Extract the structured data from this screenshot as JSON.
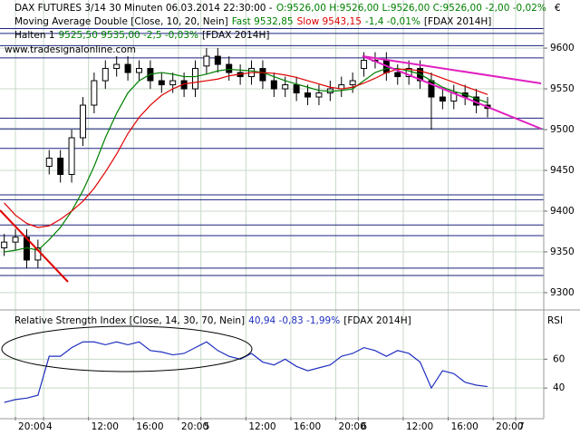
{
  "chart_data": {
    "type": "candlestick",
    "title": "DAX FUTURES 3/14 30 Minuten  06.03.2014 22:30:00 -",
    "quote": "O:9526,00 H:9526,00 L:9526,00 C:9526,00 -2,00 -0,02%",
    "currency": "€",
    "watermark": "www.tradesignalonline.com",
    "ma_label": "Moving Average Double [Close, 10, 20, Nein]",
    "ma_fast_label": "Fast 9532,85",
    "ma_slow_label": "Slow 9543,15",
    "ma_change": "-1,4 -0,01%",
    "ma_symbol": "[FDAX 2014H]",
    "hold_label": "Halten 1",
    "hold_values": "9525,50 9535,00 -2,5 -0,03%",
    "hold_symbol": "[FDAX 2014H]",
    "x": [
      0,
      2,
      4,
      6,
      8,
      10,
      12,
      14,
      16,
      18,
      20,
      22,
      24,
      26,
      28,
      30,
      32,
      34,
      36,
      38,
      40,
      42,
      44,
      46,
      48,
      50,
      52,
      54,
      56,
      58,
      60,
      62,
      64,
      66,
      68,
      70,
      72,
      74,
      76,
      78,
      80,
      82,
      84,
      86
    ],
    "open": [
      9355,
      9362,
      9368,
      9340,
      9455,
      9465,
      9445,
      9490,
      9530,
      9560,
      9575,
      9580,
      9570,
      9575,
      9560,
      9555,
      9560,
      9550,
      9578,
      9590,
      9580,
      9570,
      9565,
      9575,
      9560,
      9550,
      9555,
      9545,
      9540,
      9545,
      9550,
      9555,
      9575,
      9585,
      9585,
      9570,
      9565,
      9575,
      9560,
      9540,
      9535,
      9545,
      9540,
      9530
    ],
    "high": [
      9372,
      9378,
      9378,
      9365,
      9475,
      9475,
      9500,
      9540,
      9570,
      9585,
      9590,
      9590,
      9585,
      9585,
      9570,
      9570,
      9570,
      9585,
      9600,
      9600,
      9590,
      9580,
      9585,
      9585,
      9570,
      9565,
      9565,
      9555,
      9555,
      9560,
      9565,
      9570,
      9595,
      9595,
      9595,
      9580,
      9585,
      9585,
      9570,
      9550,
      9555,
      9555,
      9550,
      9540
    ],
    "low": [
      9345,
      9352,
      9330,
      9330,
      9445,
      9435,
      9435,
      9480,
      9520,
      9550,
      9565,
      9560,
      9560,
      9550,
      9545,
      9545,
      9540,
      9540,
      9568,
      9570,
      9560,
      9555,
      9555,
      9550,
      9540,
      9540,
      9535,
      9530,
      9530,
      9535,
      9540,
      9545,
      9565,
      9575,
      9560,
      9555,
      9555,
      9550,
      9500,
      9525,
      9525,
      9530,
      9520,
      9515
    ],
    "close": [
      9362,
      9368,
      9340,
      9355,
      9465,
      9445,
      9490,
      9530,
      9560,
      9575,
      9580,
      9570,
      9575,
      9560,
      9555,
      9560,
      9550,
      9575,
      9590,
      9580,
      9570,
      9565,
      9575,
      9560,
      9550,
      9555,
      9545,
      9540,
      9545,
      9550,
      9555,
      9560,
      9585,
      9585,
      9570,
      9565,
      9575,
      9560,
      9540,
      9535,
      9545,
      9540,
      9530,
      9526
    ],
    "series": [
      {
        "color": "#008000",
        "values": [
          9350,
          9352,
          9355,
          9352,
          9365,
          9380,
          9400,
          9425,
          9455,
          9490,
          9520,
          9545,
          9560,
          9568,
          9570,
          9568,
          9565,
          9565,
          9568,
          9572,
          9574,
          9573,
          9572,
          9570,
          9565,
          9560,
          9556,
          9552,
          9548,
          9547,
          9548,
          9550,
          9560,
          9570,
          9575,
          9575,
          9572,
          9568,
          9560,
          9552,
          9547,
          9543,
          9538,
          9533
        ]
      },
      {
        "color": "#e00000",
        "values": [
          9410,
          9395,
          9385,
          9380,
          9382,
          9390,
          9400,
          9412,
          9428,
          9448,
          9470,
          9495,
          9515,
          9530,
          9542,
          9550,
          9556,
          9558,
          9560,
          9562,
          9566,
          9568,
          9570,
          9570,
          9569,
          9567,
          9564,
          9560,
          9556,
          9552,
          9550,
          9552,
          9557,
          9563,
          9570,
          9574,
          9574,
          9572,
          9568,
          9563,
          9558,
          9553,
          9548,
          9543
        ]
      }
    ],
    "levels": [
      9624,
      9618,
      9603,
      9588,
      9514,
      9501,
      9477,
      9420,
      9414,
      9383,
      9370,
      9330,
      9321
    ],
    "level_color": "#1a237e",
    "xlim": [
      -0.75,
      96
    ],
    "ylim": [
      9281,
      9659
    ],
    "yticks": [
      9300,
      9350,
      9400,
      9450,
      9500,
      9550,
      9600
    ],
    "xticks": [
      {
        "value": 2,
        "label": "20:00"
      },
      {
        "value": 7,
        "label": "4"
      },
      {
        "value": 15,
        "label": "12:00"
      },
      {
        "value": 23,
        "label": "16:00"
      },
      {
        "value": 31,
        "label": "20:00"
      },
      {
        "value": 35,
        "label": "5"
      },
      {
        "value": 43,
        "label": "12:00"
      },
      {
        "value": 51,
        "label": "16:00"
      },
      {
        "value": 59,
        "label": "20:00"
      },
      {
        "value": 63,
        "label": "6"
      },
      {
        "value": 71,
        "label": "12:00"
      },
      {
        "value": 79,
        "label": "16:00"
      },
      {
        "value": 87,
        "label": "20:00"
      },
      {
        "value": 91,
        "label": "7"
      }
    ],
    "rsi": {
      "label": "Relative Strength Index [Close, 14, 30, 70, Nein]",
      "stats": "40,94 -0,83 -1,99%",
      "symbol": "[FDAX 2014H]",
      "axis_label": "RSI",
      "color": "#2030c0",
      "values": [
        30,
        32,
        33,
        35,
        62,
        62,
        68,
        72,
        72,
        70,
        72,
        70,
        72,
        66,
        65,
        63,
        64,
        68,
        72,
        66,
        62,
        60,
        64,
        58,
        56,
        60,
        55,
        52,
        54,
        56,
        62,
        64,
        68,
        66,
        62,
        66,
        64,
        58,
        40,
        52,
        50,
        44,
        42,
        41
      ],
      "ylim": [
        20,
        91
      ],
      "yticks": [
        40,
        60
      ]
    }
  }
}
